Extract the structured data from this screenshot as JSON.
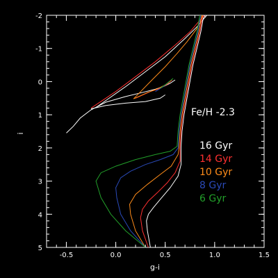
{
  "chart_data": {
    "type": "line",
    "xlabel": "g-i",
    "ylabel": "i",
    "xlim": [
      -0.7,
      1.5
    ],
    "ylim": [
      5,
      -2
    ],
    "y_inverted": true,
    "grid": false,
    "x_ticks": [
      {
        "value": -0.5,
        "label": "-0.5"
      },
      {
        "value": 0.0,
        "label": "0.0"
      },
      {
        "value": 0.5,
        "label": "0.5"
      },
      {
        "value": 1.0,
        "label": "1.0"
      },
      {
        "value": 1.5,
        "label": "1.5"
      }
    ],
    "y_ticks": [
      {
        "value": -2,
        "label": "-2"
      },
      {
        "value": -1,
        "label": "-1"
      },
      {
        "value": 0,
        "label": "0"
      },
      {
        "value": 1,
        "label": "1"
      },
      {
        "value": 2,
        "label": "2"
      },
      {
        "value": 3,
        "label": "3"
      },
      {
        "value": 4,
        "label": "4"
      },
      {
        "value": 5,
        "label": "5"
      }
    ],
    "annotation": "Fe/H -2.3",
    "series": [
      {
        "name": "16 Gyr",
        "color": "#ffffff",
        "points": [
          [
            0.35,
            5.0
          ],
          [
            0.32,
            4.5
          ],
          [
            0.31,
            4.2
          ],
          [
            0.33,
            4.0
          ],
          [
            0.38,
            3.8
          ],
          [
            0.45,
            3.55
          ],
          [
            0.55,
            3.2
          ],
          [
            0.63,
            2.85
          ],
          [
            0.66,
            2.5
          ],
          [
            0.66,
            2.0
          ],
          [
            0.67,
            1.5
          ],
          [
            0.69,
            1.0
          ],
          [
            0.72,
            0.5
          ],
          [
            0.75,
            0.0
          ],
          [
            0.78,
            -0.5
          ],
          [
            0.82,
            -1.0
          ],
          [
            0.86,
            -1.5
          ],
          [
            0.89,
            -2.0
          ]
        ],
        "branch": [
          [
            -0.5,
            1.55
          ],
          [
            -0.43,
            1.35
          ],
          [
            -0.36,
            1.1
          ],
          [
            -0.25,
            0.85
          ],
          [
            -0.1,
            0.62
          ],
          [
            0.1,
            0.45
          ],
          [
            0.28,
            0.32
          ],
          [
            0.4,
            0.23
          ],
          [
            0.48,
            0.15
          ],
          [
            0.55,
            0.05
          ],
          [
            0.6,
            -0.05
          ]
        ],
        "agb": [
          [
            -0.25,
            0.82
          ],
          [
            -0.1,
            0.72
          ],
          [
            0.1,
            0.65
          ],
          [
            0.3,
            0.6
          ],
          [
            0.45,
            0.5
          ],
          [
            0.5,
            0.4
          ]
        ],
        "upper": [
          [
            -0.2,
            0.78
          ],
          [
            0.1,
            0.15
          ],
          [
            0.3,
            -0.3
          ],
          [
            0.5,
            -0.75
          ],
          [
            0.7,
            -1.3
          ],
          [
            0.82,
            -1.65
          ],
          [
            0.92,
            -2.0
          ]
        ]
      },
      {
        "name": "14 Gyr",
        "color": "#ff3030",
        "points": [
          [
            0.33,
            5.0
          ],
          [
            0.27,
            4.5
          ],
          [
            0.25,
            4.1
          ],
          [
            0.27,
            3.85
          ],
          [
            0.33,
            3.6
          ],
          [
            0.42,
            3.35
          ],
          [
            0.52,
            3.05
          ],
          [
            0.6,
            2.75
          ],
          [
            0.65,
            2.4
          ],
          [
            0.65,
            2.0
          ],
          [
            0.66,
            1.5
          ],
          [
            0.68,
            1.0
          ],
          [
            0.71,
            0.5
          ],
          [
            0.74,
            0.0
          ],
          [
            0.77,
            -0.5
          ],
          [
            0.81,
            -1.0
          ],
          [
            0.85,
            -1.5
          ],
          [
            0.88,
            -2.0
          ]
        ],
        "branch": [
          [
            0.2,
            0.5
          ],
          [
            0.35,
            0.3
          ],
          [
            0.45,
            0.2
          ],
          [
            0.52,
            0.08
          ],
          [
            0.57,
            -0.05
          ]
        ],
        "upper": [
          [
            -0.25,
            0.8
          ],
          [
            0.0,
            0.3
          ],
          [
            0.2,
            -0.15
          ],
          [
            0.4,
            -0.6
          ],
          [
            0.6,
            -1.1
          ],
          [
            0.75,
            -1.5
          ],
          [
            0.85,
            -1.85
          ],
          [
            0.9,
            -2.0
          ]
        ]
      },
      {
        "name": "10 Gyr",
        "color": "#ff8c1a",
        "points": [
          [
            0.3,
            5.0
          ],
          [
            0.2,
            4.5
          ],
          [
            0.15,
            4.0
          ],
          [
            0.14,
            3.7
          ],
          [
            0.2,
            3.4
          ],
          [
            0.32,
            3.1
          ],
          [
            0.45,
            2.8
          ],
          [
            0.56,
            2.55
          ],
          [
            0.63,
            2.2
          ],
          [
            0.64,
            2.0
          ],
          [
            0.65,
            1.5
          ],
          [
            0.67,
            1.0
          ],
          [
            0.7,
            0.5
          ],
          [
            0.73,
            0.0
          ],
          [
            0.76,
            -0.5
          ],
          [
            0.8,
            -1.0
          ],
          [
            0.84,
            -1.5
          ],
          [
            0.87,
            -2.0
          ]
        ],
        "branch": [
          [
            0.18,
            0.52
          ],
          [
            0.32,
            0.33
          ],
          [
            0.42,
            0.22
          ],
          [
            0.5,
            0.1
          ],
          [
            0.55,
            -0.02
          ]
        ],
        "upper": [
          [
            0.18,
            0.52
          ],
          [
            0.35,
            0.0
          ],
          [
            0.5,
            -0.45
          ],
          [
            0.62,
            -0.85
          ],
          [
            0.72,
            -1.2
          ],
          [
            0.82,
            -1.6
          ],
          [
            0.88,
            -2.0
          ]
        ]
      },
      {
        "name": "8 Gyr",
        "color": "#2a4ab8",
        "points": [
          [
            0.3,
            5.0
          ],
          [
            0.15,
            4.5
          ],
          [
            0.05,
            4.0
          ],
          [
            0.01,
            3.5
          ],
          [
            0.0,
            3.2
          ],
          [
            0.05,
            2.9
          ],
          [
            0.15,
            2.7
          ],
          [
            0.3,
            2.5
          ],
          [
            0.45,
            2.35
          ],
          [
            0.58,
            2.2
          ],
          [
            0.63,
            2.0
          ],
          [
            0.64,
            1.5
          ],
          [
            0.66,
            1.0
          ],
          [
            0.69,
            0.5
          ],
          [
            0.72,
            0.0
          ],
          [
            0.75,
            -0.5
          ],
          [
            0.79,
            -1.0
          ],
          [
            0.83,
            -1.5
          ],
          [
            0.86,
            -2.0
          ]
        ],
        "branch": [
          [
            0.4,
            0.3
          ],
          [
            0.48,
            0.15
          ],
          [
            0.54,
            0.0
          ]
        ]
      },
      {
        "name": "6 Gyr",
        "color": "#22a02a",
        "points": [
          [
            0.3,
            5.0
          ],
          [
            0.1,
            4.5
          ],
          [
            -0.05,
            4.0
          ],
          [
            -0.15,
            3.5
          ],
          [
            -0.2,
            3.0
          ],
          [
            -0.15,
            2.75
          ],
          [
            0.0,
            2.55
          ],
          [
            0.2,
            2.35
          ],
          [
            0.4,
            2.2
          ],
          [
            0.55,
            2.1
          ],
          [
            0.62,
            1.95
          ],
          [
            0.63,
            1.5
          ],
          [
            0.65,
            1.0
          ],
          [
            0.68,
            0.5
          ],
          [
            0.71,
            0.0
          ],
          [
            0.74,
            -0.5
          ],
          [
            0.78,
            -1.0
          ],
          [
            0.82,
            -1.5
          ],
          [
            0.85,
            -2.0
          ]
        ],
        "branch": [
          [
            0.45,
            0.2
          ],
          [
            0.52,
            0.05
          ],
          [
            0.58,
            -0.1
          ]
        ]
      }
    ]
  }
}
